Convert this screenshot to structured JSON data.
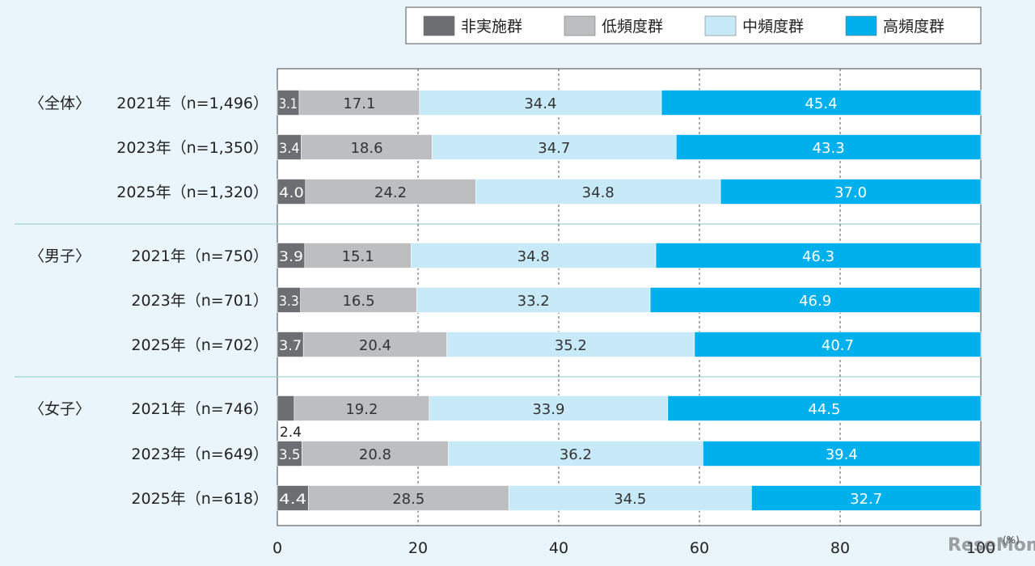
{
  "chart_data": {
    "type": "bar",
    "stacked": true,
    "orientation": "horizontal",
    "legend": [
      "非実施群",
      "低頻度群",
      "中頻度群",
      "高頻度群"
    ],
    "colors": [
      "#6d6e71",
      "#bcbec0",
      "#c8e9f8",
      "#00b0ec"
    ],
    "label_colors": [
      "#ffffff",
      "#333333",
      "#333333",
      "#ffffff"
    ],
    "groups": [
      {
        "label": "〈全体〉",
        "rows": [
          {
            "label": "2021年（n=1,496）",
            "values": [
              3.1,
              17.1,
              34.4,
              45.4
            ]
          },
          {
            "label": "2023年（n=1,350）",
            "values": [
              3.4,
              18.6,
              34.7,
              43.3
            ]
          },
          {
            "label": "2025年（n=1,320）",
            "values": [
              4.0,
              24.2,
              34.8,
              37.0
            ]
          }
        ]
      },
      {
        "label": "〈男子〉",
        "rows": [
          {
            "label": "2021年（n=750）",
            "values": [
              3.9,
              15.1,
              34.8,
              46.3
            ]
          },
          {
            "label": "2023年（n=701）",
            "values": [
              3.3,
              16.5,
              33.2,
              46.9
            ]
          },
          {
            "label": "2025年（n=702）",
            "values": [
              3.7,
              20.4,
              35.2,
              40.7
            ]
          }
        ]
      },
      {
        "label": "〈女子〉",
        "rows": [
          {
            "label": "2021年（n=746）",
            "values": [
              2.4,
              19.2,
              33.9,
              44.5
            ],
            "small_label_below": true
          },
          {
            "label": "2023年（n=649）",
            "values": [
              3.5,
              20.8,
              36.2,
              39.4
            ]
          },
          {
            "label": "2025年（n=618）",
            "values": [
              4.4,
              28.5,
              34.5,
              32.7
            ]
          }
        ]
      }
    ],
    "xlim": [
      0,
      100
    ],
    "xticks": [
      0,
      20,
      40,
      60,
      80,
      100
    ],
    "xunit": "(%)",
    "watermark": "ReseMom"
  }
}
